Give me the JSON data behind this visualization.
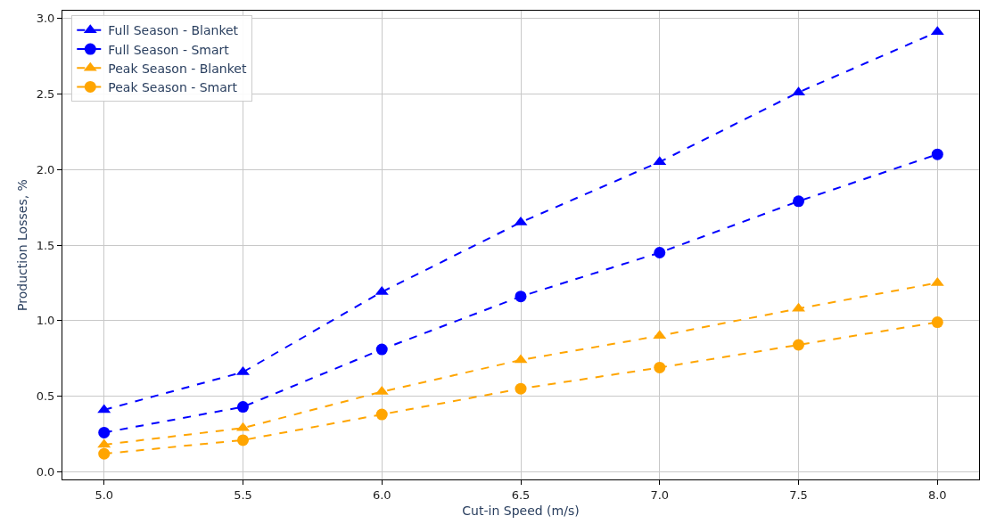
{
  "chart_data": {
    "type": "line",
    "xlabel": "Cut-in Speed (m/s)",
    "ylabel": "Production Losses, %",
    "x": [
      5.0,
      5.5,
      6.0,
      6.5,
      7.0,
      7.5,
      8.0
    ],
    "series": [
      {
        "name": "Full Season - Blanket",
        "color": "#0000ff",
        "marker": "triangle",
        "values": [
          0.41,
          0.66,
          1.19,
          1.65,
          2.05,
          2.51,
          2.91
        ]
      },
      {
        "name": "Full Season - Smart",
        "color": "#0000ff",
        "marker": "circle",
        "values": [
          0.26,
          0.43,
          0.81,
          1.16,
          1.45,
          1.79,
          2.1
        ]
      },
      {
        "name": "Peak Season - Blanket",
        "color": "#ffa500",
        "marker": "triangle",
        "values": [
          0.18,
          0.29,
          0.53,
          0.74,
          0.9,
          1.08,
          1.25
        ]
      },
      {
        "name": "Peak Season - Smart",
        "color": "#ffa500",
        "marker": "circle",
        "values": [
          0.12,
          0.21,
          0.38,
          0.55,
          0.69,
          0.84,
          0.99
        ]
      }
    ],
    "line_style": "dashed",
    "grid": true,
    "legend": "top left",
    "xlim": [
      4.85,
      8.15
    ],
    "xticks": [
      {
        "value": 5.0,
        "label": "5.0"
      },
      {
        "value": 5.5,
        "label": "5.5"
      },
      {
        "value": 6.0,
        "label": "6.0"
      },
      {
        "value": 6.5,
        "label": "6.5"
      },
      {
        "value": 7.0,
        "label": "7.0"
      },
      {
        "value": 7.5,
        "label": "7.5"
      },
      {
        "value": 8.0,
        "label": "8.0"
      }
    ],
    "ylim": [
      -0.05,
      3.05
    ],
    "yticks": [
      {
        "value": 0.0,
        "label": "0.0"
      },
      {
        "value": 0.5,
        "label": "0.5"
      },
      {
        "value": 1.0,
        "label": "1.0"
      },
      {
        "value": 1.5,
        "label": "1.5"
      },
      {
        "value": 2.0,
        "label": "2.0"
      },
      {
        "value": 2.5,
        "label": "2.5"
      },
      {
        "value": 3.0,
        "label": "3.0"
      }
    ]
  }
}
